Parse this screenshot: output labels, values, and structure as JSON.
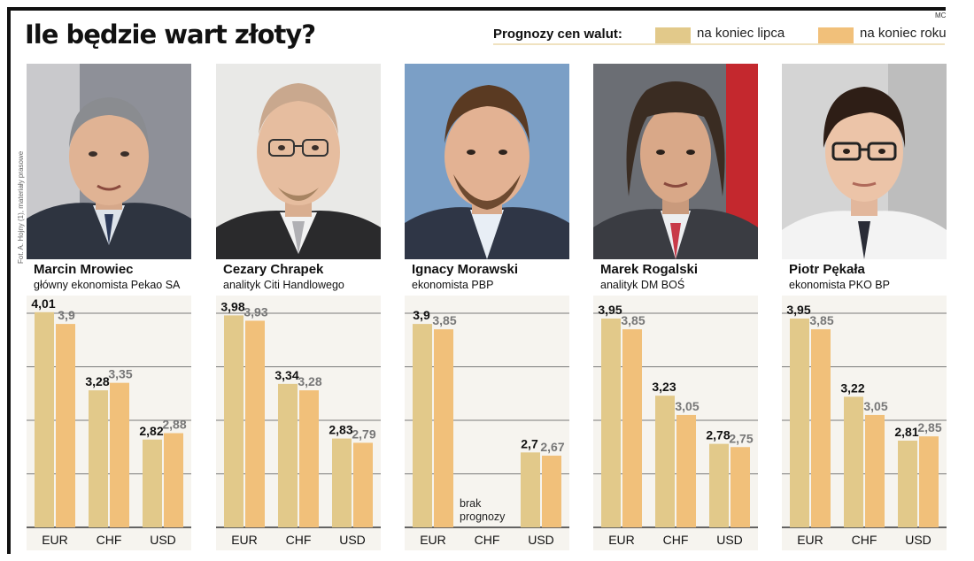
{
  "title": "Ile będzie wart złoty?",
  "credit_mc": "MC",
  "photo_credit": "Fot. A. Hojny (1), materiały prasowe",
  "legend": {
    "title": "Prognozy cen walut:",
    "items": [
      {
        "label": "na koniec lipca",
        "color": "#e2c98a"
      },
      {
        "label": "na koniec roku",
        "color": "#f1c07a"
      }
    ]
  },
  "chart_data": [
    {
      "type": "bar",
      "categories": [
        "EUR",
        "CHF",
        "USD"
      ],
      "ylim": [
        2,
        4.2
      ],
      "series": [
        {
          "name": "na koniec lipca",
          "values": [
            4.01,
            3.28,
            2.82
          ]
        },
        {
          "name": "na koniec roku",
          "values": [
            3.9,
            3.35,
            2.88
          ]
        }
      ],
      "labels": [
        [
          "4,01",
          "3,9"
        ],
        [
          "3,28",
          "3,35"
        ],
        [
          "2,82",
          "2,88"
        ]
      ]
    },
    {
      "type": "bar",
      "categories": [
        "EUR",
        "CHF",
        "USD"
      ],
      "ylim": [
        2,
        4.2
      ],
      "series": [
        {
          "name": "na koniec lipca",
          "values": [
            3.98,
            3.34,
            2.83
          ]
        },
        {
          "name": "na koniec roku",
          "values": [
            3.93,
            3.28,
            2.79
          ]
        }
      ],
      "labels": [
        [
          "3,98",
          "3,93"
        ],
        [
          "3,34",
          "3,28"
        ],
        [
          "2,83",
          "2,79"
        ]
      ]
    },
    {
      "type": "bar",
      "categories": [
        "EUR",
        "CHF",
        "USD"
      ],
      "ylim": [
        2,
        4.2
      ],
      "series": [
        {
          "name": "na koniec lipca",
          "values": [
            3.9,
            null,
            2.7
          ]
        },
        {
          "name": "na koniec roku",
          "values": [
            3.85,
            null,
            2.67
          ]
        }
      ],
      "labels": [
        [
          "3,9",
          "3,85"
        ],
        [
          null,
          null
        ],
        [
          "2,7",
          "2,67"
        ]
      ],
      "note": "brak prognozy"
    },
    {
      "type": "bar",
      "categories": [
        "EUR",
        "CHF",
        "USD"
      ],
      "ylim": [
        2,
        4.2
      ],
      "series": [
        {
          "name": "na koniec lipca",
          "values": [
            3.95,
            3.23,
            2.78
          ]
        },
        {
          "name": "na koniec roku",
          "values": [
            3.85,
            3.05,
            2.75
          ]
        }
      ],
      "labels": [
        [
          "3,95",
          "3,85"
        ],
        [
          "3,23",
          "3,05"
        ],
        [
          "2,78",
          "2,75"
        ]
      ]
    },
    {
      "type": "bar",
      "categories": [
        "EUR",
        "CHF",
        "USD"
      ],
      "ylim": [
        2,
        4.2
      ],
      "series": [
        {
          "name": "na koniec lipca",
          "values": [
            3.95,
            3.22,
            2.81
          ]
        },
        {
          "name": "na koniec roku",
          "values": [
            3.85,
            3.05,
            2.85
          ]
        }
      ],
      "labels": [
        [
          "3,95",
          "3,85"
        ],
        [
          "3,22",
          "3,05"
        ],
        [
          "2,81",
          "2,85"
        ]
      ]
    }
  ],
  "panels": [
    {
      "name": "Marcin Mrowiec",
      "role": "główny ekonomista Pekao SA"
    },
    {
      "name": "Cezary Chrapek",
      "role": "analityk Citi Handlowego"
    },
    {
      "name": "Ignacy Morawski",
      "role": "ekonomista PBP",
      "note_line1": "brak",
      "note_line2": "prognozy"
    },
    {
      "name": "Marek Rogalski",
      "role": "analityk DM BOŚ"
    },
    {
      "name": "Piotr Pękała",
      "role": "ekonomista PKO BP"
    }
  ]
}
